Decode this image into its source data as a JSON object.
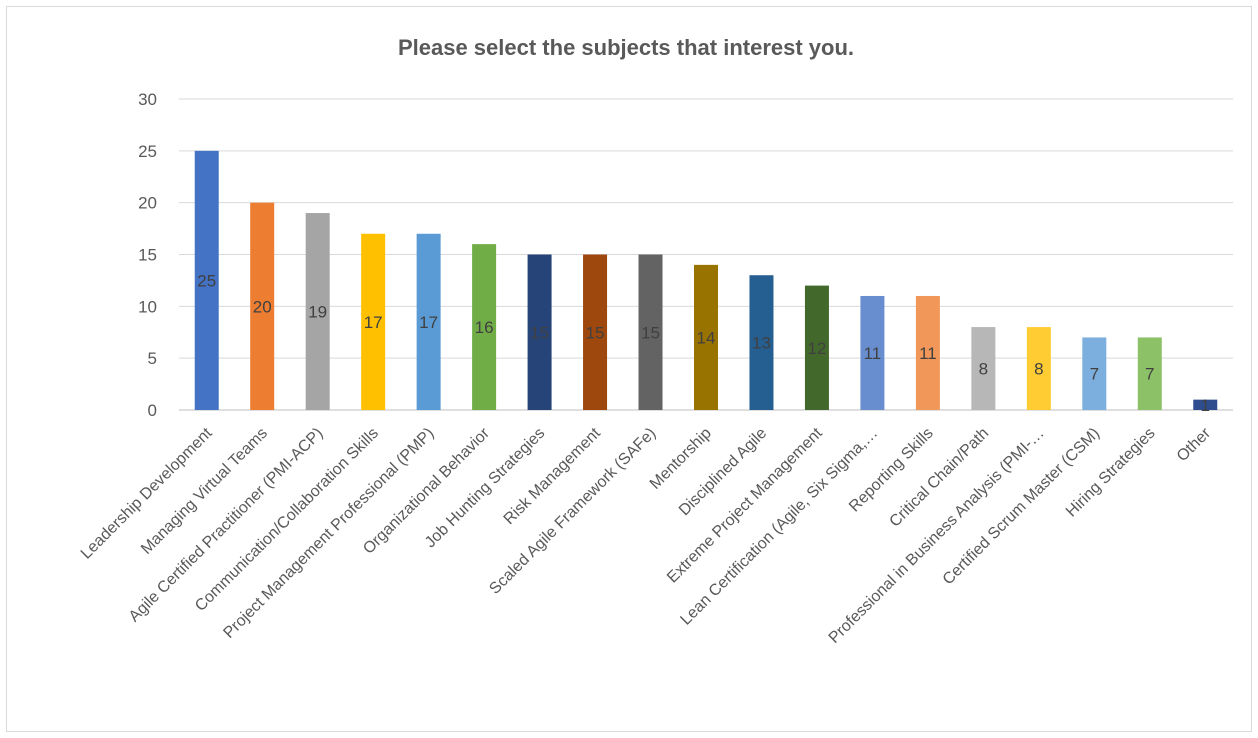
{
  "chart_data": {
    "type": "bar",
    "title": "Please select the subjects that interest you.",
    "xlabel": "",
    "ylabel": "",
    "ylim": [
      0,
      30
    ],
    "yticks": [
      0,
      5,
      10,
      15,
      20,
      25,
      30
    ],
    "grid": true,
    "legend": "none",
    "categories": [
      "Leadership Development",
      "Managing Virtual Teams",
      "Agile Certified Practitioner (PMI-ACP)",
      "Communication/Collaboration Skills",
      "Project Management Professional (PMP)",
      "Organizational Behavior",
      "Job Hunting Strategies",
      "Risk Management",
      "Scaled Agile Framework (SAFe)",
      "Mentorship",
      "Disciplined Agile",
      "Extreme Project Management",
      "Lean Certification (Agile, Six Sigma,…",
      "Reporting Skills",
      "Critical Chain/Path",
      "Professional in Business Analysis (PMI-…",
      "Certified Scrum Master (CSM)",
      "Hiring Strategies",
      "Other"
    ],
    "values": [
      25,
      20,
      19,
      17,
      17,
      16,
      15,
      15,
      15,
      14,
      13,
      12,
      11,
      11,
      8,
      8,
      7,
      7,
      1
    ],
    "colors": [
      "#4472C4",
      "#ED7D31",
      "#A5A5A5",
      "#FFC000",
      "#5B9BD5",
      "#70AD47",
      "#264478",
      "#9E480E",
      "#636363",
      "#997300",
      "#255E91",
      "#43682B",
      "#698ED0",
      "#F1975A",
      "#B7B7B7",
      "#FFCD33",
      "#7CAFDD",
      "#8CC168",
      "#2E4D8F"
    ]
  }
}
